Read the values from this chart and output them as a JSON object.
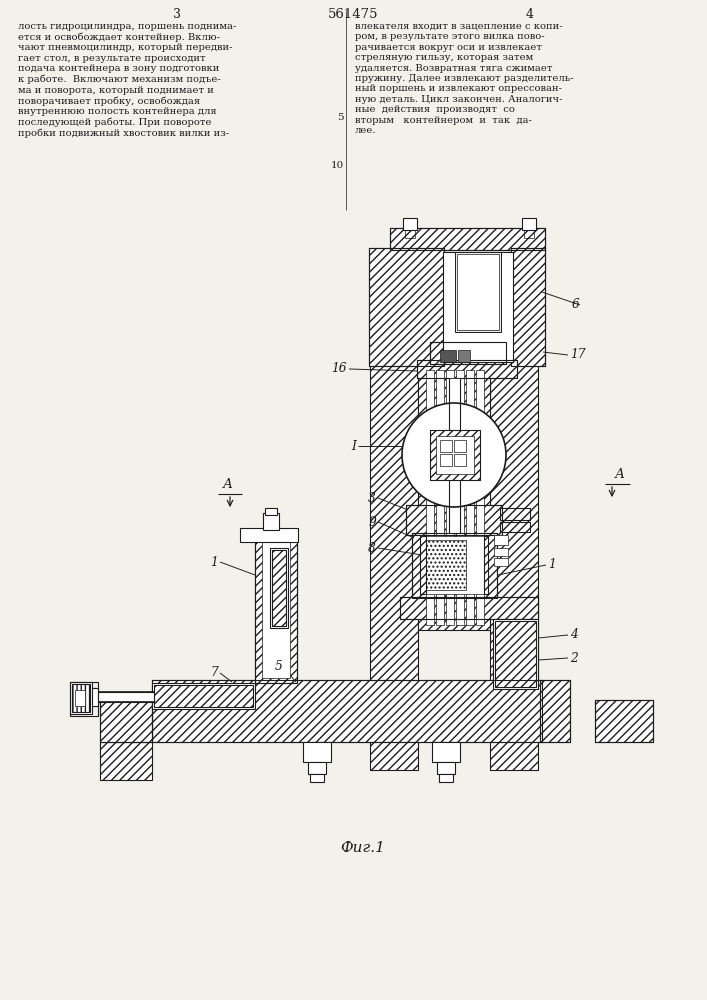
{
  "page_number_left": "3",
  "page_number_center": "561475",
  "page_number_right": "4",
  "text_left": "лость гидроцилиндра, поршень поднима-\nется и освобождает контейнер. Вклю-\nчают пневмоцилиндр, который передви-\nгает стол, в результате происходит\nподача контейнера в зону подготовки\nк работе.  Включают механизм подъе-\nма и поворота, который поднимает и\nповорачивает пробку, освобождая\nвнутреннюю полость контейнера для\nпоследующей работы. При повороте\nпробки подвижный хвостовик вилки из-",
  "text_right": "влекателя входит в зацепление с копи-\nром, в результате этого вилка пово-\nрачивается вокруг оси и извлекает\nстреляную гильзу, которая затем\nудаляется. Возвратная тяга сжимает\nпружину. Далее извлекают разделитель-\nный поршень и извлекают опрессован-\nную деталь. Цикл закончен. Аналогич-\nные  действия  производят  со\nвторым   контейнером  и  так  да-\nлее.",
  "caption": "Фиг.1",
  "bg": "#f2f1ec",
  "dc": "#1c1c1c",
  "lw": 0.8
}
